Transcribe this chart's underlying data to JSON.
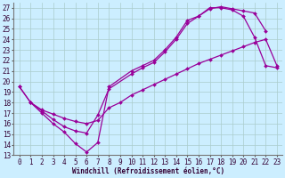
{
  "xlabel": "Windchill (Refroidissement éolien,°C)",
  "bg_color": "#cceeff",
  "grid_color": "#aacccc",
  "line_color": "#990099",
  "xlim": [
    -0.5,
    23.5
  ],
  "ylim": [
    13,
    27.5
  ],
  "xticks": [
    0,
    1,
    2,
    3,
    4,
    5,
    6,
    7,
    8,
    9,
    10,
    11,
    12,
    13,
    14,
    15,
    16,
    17,
    18,
    19,
    20,
    21,
    22,
    23
  ],
  "yticks": [
    13,
    14,
    15,
    16,
    17,
    18,
    19,
    20,
    21,
    22,
    23,
    24,
    25,
    26,
    27
  ],
  "line1_x": [
    0,
    1,
    2,
    3,
    4,
    5,
    6,
    7,
    8,
    10,
    11,
    12,
    13,
    14,
    15,
    16,
    17,
    18,
    19,
    20,
    21,
    22,
    23
  ],
  "line1_y": [
    19.5,
    18.0,
    17.0,
    16.0,
    15.2,
    14.1,
    13.3,
    14.2,
    19.5,
    21.0,
    21.5,
    22.0,
    23.0,
    24.2,
    25.8,
    26.2,
    27.0,
    27.0,
    26.8,
    26.2,
    24.2,
    21.5,
    21.3
  ],
  "line2_x": [
    0,
    1,
    2,
    3,
    4,
    5,
    6,
    7,
    8,
    10,
    11,
    12,
    13,
    14,
    15,
    16,
    17,
    18,
    19,
    20,
    21,
    22
  ],
  "line2_y": [
    19.5,
    18.0,
    17.2,
    16.4,
    15.7,
    15.3,
    15.1,
    16.8,
    19.3,
    20.7,
    21.3,
    21.8,
    22.8,
    24.0,
    25.5,
    26.2,
    26.9,
    27.1,
    26.9,
    26.7,
    26.5,
    24.8
  ],
  "line3_x": [
    1,
    2,
    3,
    4,
    5,
    6,
    7,
    8,
    9,
    10,
    11,
    12,
    13,
    14,
    15,
    16,
    17,
    18,
    19,
    20,
    21,
    22,
    23
  ],
  "line3_y": [
    18.0,
    17.3,
    16.9,
    16.5,
    16.2,
    16.0,
    16.3,
    17.5,
    18.0,
    18.7,
    19.2,
    19.7,
    20.2,
    20.7,
    21.2,
    21.7,
    22.1,
    22.5,
    22.9,
    23.3,
    23.7,
    24.0,
    21.5
  ],
  "marker": "D",
  "marker_size": 2.0,
  "line_width": 0.9,
  "tick_fontsize": 5.5,
  "xlabel_fontsize": 5.5
}
